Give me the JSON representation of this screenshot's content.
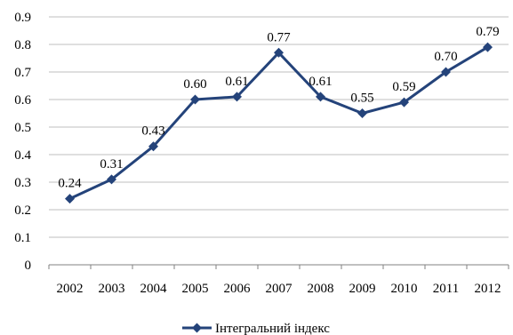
{
  "chart_data": {
    "type": "line",
    "title": "",
    "xlabel": "",
    "ylabel": "",
    "categories": [
      "2002",
      "2003",
      "2004",
      "2005",
      "2006",
      "2007",
      "2008",
      "2009",
      "2010",
      "2011",
      "2012"
    ],
    "series": [
      {
        "name": "Інтегральний індекс",
        "values": [
          0.24,
          0.31,
          0.43,
          0.6,
          0.61,
          0.77,
          0.61,
          0.55,
          0.59,
          0.7,
          0.79
        ],
        "labels": [
          "0.24",
          "0.31",
          "0.43",
          "0.60",
          "0.61",
          "0.77",
          "0.61",
          "0.55",
          "0.59",
          "0.70",
          "0.79"
        ],
        "color": "#24437a",
        "marker": "diamond"
      }
    ],
    "ylim": [
      0,
      0.9
    ],
    "yticks": [
      "0",
      "0.1",
      "0.2",
      "0.3",
      "0.4",
      "0.5",
      "0.6",
      "0.7",
      "0.8",
      "0.9"
    ],
    "grid": true,
    "legend": "bottom"
  },
  "colors": {
    "series": "#24437a",
    "grid": "#bfbfbf",
    "axis": "#808080"
  }
}
